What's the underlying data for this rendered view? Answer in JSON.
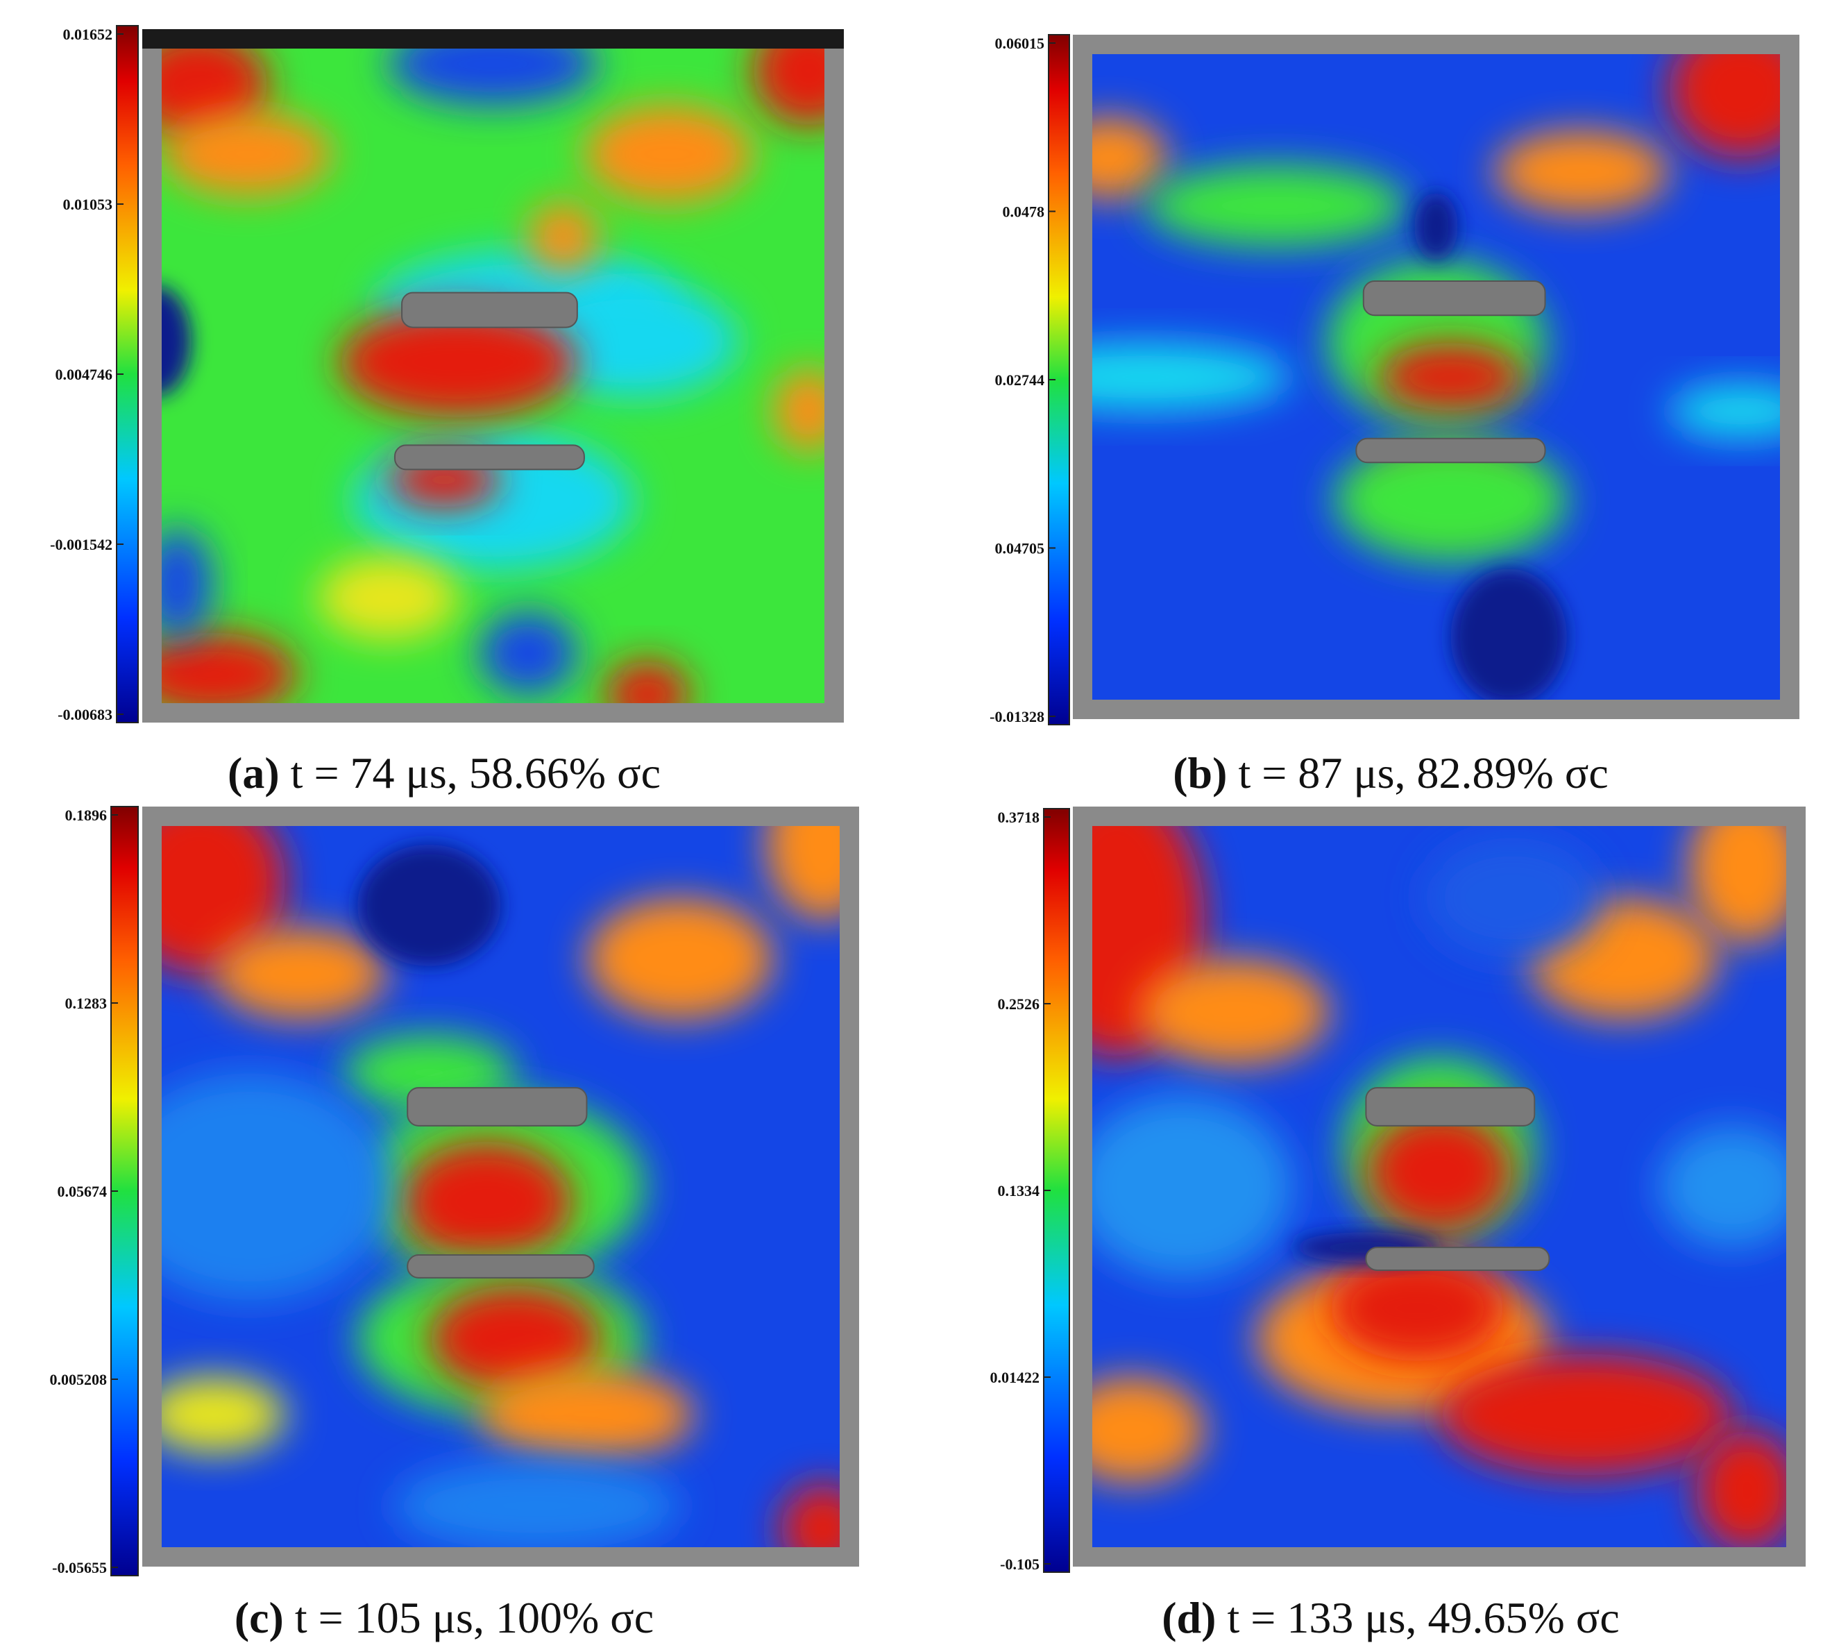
{
  "panels": [
    {
      "colorbar_labels": [
        "0.01652",
        "0.01053",
        "0.004746",
        "-0.001542",
        "-0.00683"
      ],
      "tag": "(a)",
      "caption": "t = 74 μs, 58.66% σc"
    },
    {
      "colorbar_labels": [
        "0.06015",
        "0.0478",
        "0.02744",
        "0.04705",
        "-0.01328"
      ],
      "tag": "(b)",
      "caption": "t = 87 μs, 82.89% σc"
    },
    {
      "colorbar_labels": [
        "0.1896",
        "0.1283",
        "0.05674",
        "0.005208",
        "-0.05655"
      ],
      "tag": "(c)",
      "caption": "t = 105 μs, 100% σc"
    },
    {
      "colorbar_labels": [
        "0.3718",
        "0.2526",
        "0.1334",
        "0.01422",
        "-0.105"
      ],
      "tag": "(d)",
      "caption": "t = 133 μs, 49.65% σc"
    }
  ]
}
